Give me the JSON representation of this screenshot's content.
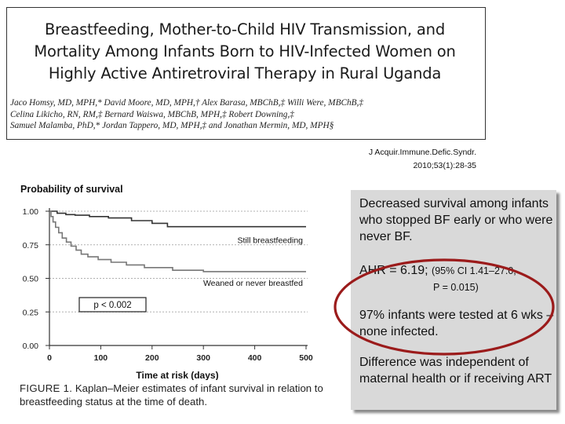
{
  "paper": {
    "title_lines": [
      "Breastfeeding, Mother-to-Child HIV Transmission, and",
      "Mortality Among Infants Born to HIV-Infected Women on",
      "Highly Active Antiretroviral Therapy in Rural Uganda"
    ],
    "author_lines": [
      "Jaco Homsy, MD, MPH,* David Moore, MD, MPH,† Alex Barasa, MBChB,‡ Willi Were, MBChB,‡",
      "Celina Likicho, RN, RM,‡ Bernard Waiswa, MBChB, MPH,‡ Robert Downing,‡",
      "Samuel Malamba, PhD,* Jordan Tappero, MD, MPH,‡ and Jonathan Mermin, MD, MPH§"
    ]
  },
  "citation": {
    "line1": "J Acquir.Immune.Defic.Syndr.",
    "line2": "2010;53(1):28-35"
  },
  "chart_data": {
    "type": "line",
    "title": "Probability of survival",
    "xlabel": "Time at risk (days)",
    "ylabel": "",
    "xlim": [
      0,
      500
    ],
    "ylim": [
      0,
      1
    ],
    "xticks": [
      "0",
      "100",
      "200",
      "300",
      "400",
      "500"
    ],
    "yticks": [
      "0.00",
      "0.25",
      "0.50",
      "0.75",
      "1.00"
    ],
    "annotation": "p < 0.002",
    "series": [
      {
        "name": "Still breastfeeding",
        "color": "#333333",
        "points": [
          [
            0,
            1.0
          ],
          [
            15,
            1.0
          ],
          [
            15,
            0.985
          ],
          [
            32,
            0.985
          ],
          [
            32,
            0.975
          ],
          [
            50,
            0.975
          ],
          [
            50,
            0.97
          ],
          [
            78,
            0.97
          ],
          [
            78,
            0.96
          ],
          [
            115,
            0.96
          ],
          [
            115,
            0.95
          ],
          [
            160,
            0.95
          ],
          [
            160,
            0.93
          ],
          [
            200,
            0.93
          ],
          [
            200,
            0.91
          ],
          [
            230,
            0.91
          ],
          [
            230,
            0.885
          ],
          [
            500,
            0.885
          ]
        ]
      },
      {
        "name": "Weaned or never breastfed",
        "color": "#777777",
        "points": [
          [
            0,
            1.0
          ],
          [
            3,
            1.0
          ],
          [
            3,
            0.96
          ],
          [
            7,
            0.96
          ],
          [
            7,
            0.92
          ],
          [
            12,
            0.92
          ],
          [
            12,
            0.88
          ],
          [
            18,
            0.88
          ],
          [
            18,
            0.84
          ],
          [
            25,
            0.84
          ],
          [
            25,
            0.8
          ],
          [
            33,
            0.8
          ],
          [
            33,
            0.77
          ],
          [
            42,
            0.77
          ],
          [
            42,
            0.74
          ],
          [
            52,
            0.74
          ],
          [
            52,
            0.71
          ],
          [
            62,
            0.71
          ],
          [
            62,
            0.68
          ],
          [
            75,
            0.68
          ],
          [
            75,
            0.66
          ],
          [
            95,
            0.66
          ],
          [
            95,
            0.64
          ],
          [
            120,
            0.64
          ],
          [
            120,
            0.62
          ],
          [
            150,
            0.62
          ],
          [
            150,
            0.6
          ],
          [
            185,
            0.6
          ],
          [
            185,
            0.58
          ],
          [
            240,
            0.58
          ],
          [
            240,
            0.56
          ],
          [
            300,
            0.56
          ],
          [
            300,
            0.55
          ],
          [
            500,
            0.55
          ]
        ]
      }
    ]
  },
  "caption": {
    "label": "FIGURE 1.",
    "text": "Kaplan–Meier estimates of infant survival in relation to breastfeeding status at the time of death."
  },
  "summary": {
    "block1": "Decreased survival among infants who stopped BF early or who were never BF.",
    "block2_main": "AHR = 6.19; ",
    "block2_ci": "(95% CI 1.41–27.0,",
    "block2_p": "P = 0.015)",
    "block3": "97% infants were tested at 6 wks – none infected.",
    "block4": "Difference was independent of maternal health or if receiving ART"
  },
  "colors": {
    "panel_bg": "#d9d9d9",
    "ellipse": "#9b1b1b"
  }
}
